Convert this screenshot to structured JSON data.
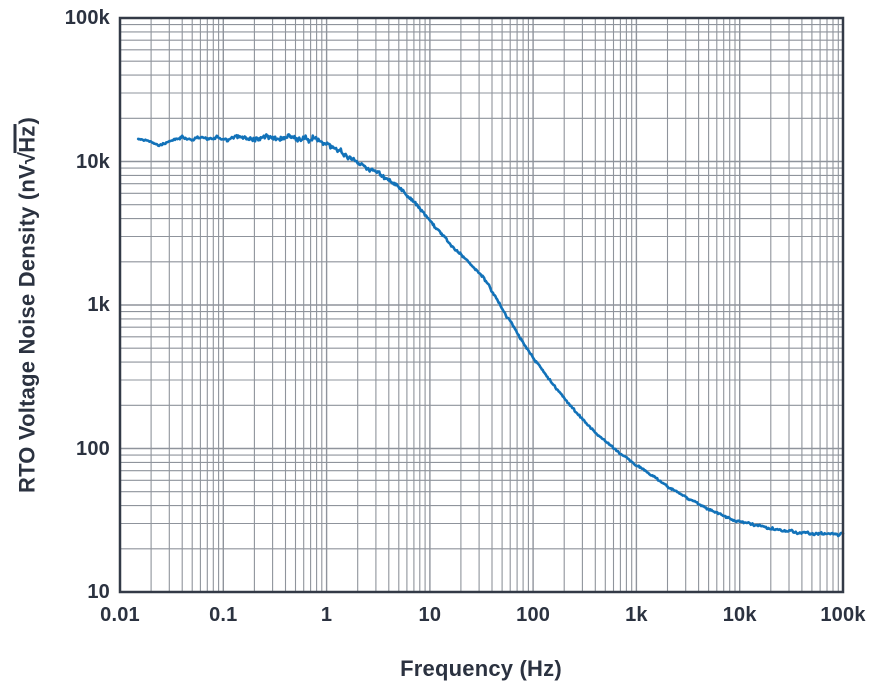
{
  "colors": {
    "curve": "#1272b9",
    "grid": "#8f949c",
    "frame": "#333a47",
    "text": "#2b3240",
    "background": "#ffffff"
  },
  "chart_data": {
    "type": "line",
    "title": "",
    "xlabel": "Frequency (Hz)",
    "ylabel": "RTO Voltage Noise Density (nV√Hz)",
    "ylabel_parts": {
      "prefix": "RTO Voltage Noise Density (nV",
      "sqrt_symbol": "√",
      "radicand": "Hz",
      "suffix": ")"
    },
    "x_scale": "log",
    "y_scale": "log",
    "xlim": [
      0.01,
      100000
    ],
    "ylim": [
      10,
      100000
    ],
    "grid": {
      "on": true,
      "minor": true
    },
    "legend": null,
    "x_ticks": [
      {
        "v": 0.01,
        "label": "0.01"
      },
      {
        "v": 0.1,
        "label": "0.1"
      },
      {
        "v": 1,
        "label": "1"
      },
      {
        "v": 10,
        "label": "10"
      },
      {
        "v": 100,
        "label": "100"
      },
      {
        "v": 1000,
        "label": "1k"
      },
      {
        "v": 10000,
        "label": "10k"
      },
      {
        "v": 100000,
        "label": "100k"
      }
    ],
    "y_ticks": [
      {
        "v": 10,
        "label": "10"
      },
      {
        "v": 100,
        "label": "100"
      },
      {
        "v": 1000,
        "label": "1k"
      },
      {
        "v": 10000,
        "label": "10k"
      },
      {
        "v": 100000,
        "label": "100k"
      }
    ],
    "series": [
      {
        "name": "RTO voltage noise density",
        "color": "#1272b9",
        "points_format": [
          "frequency_hz",
          "noise_nv_rthz",
          "jitter_log10"
        ],
        "points": [
          [
            0.015,
            14500,
            0.006
          ],
          [
            0.019,
            13900,
            0.007
          ],
          [
            0.024,
            13000,
            0.008
          ],
          [
            0.03,
            13900,
            0.009
          ],
          [
            0.04,
            14800,
            0.01
          ],
          [
            0.05,
            14200,
            0.011
          ],
          [
            0.062,
            14900,
            0.012
          ],
          [
            0.075,
            14300,
            0.013
          ],
          [
            0.09,
            14800,
            0.014
          ],
          [
            0.11,
            14400,
            0.015
          ],
          [
            0.14,
            14900,
            0.016
          ],
          [
            0.18,
            14300,
            0.017
          ],
          [
            0.24,
            14800,
            0.018
          ],
          [
            0.32,
            14400,
            0.02
          ],
          [
            0.45,
            14700,
            0.022
          ],
          [
            0.6,
            14500,
            0.024
          ],
          [
            0.75,
            14100,
            0.025
          ],
          [
            0.9,
            13900,
            0.025
          ],
          [
            1.1,
            12800,
            0.024
          ],
          [
            1.4,
            11500,
            0.022
          ],
          [
            1.8,
            10300,
            0.02
          ],
          [
            2.3,
            9200,
            0.018
          ],
          [
            3.0,
            8600,
            0.016
          ],
          [
            5.0,
            6600,
            0.015
          ],
          [
            7.0,
            5300,
            0.014
          ],
          [
            10,
            3900,
            0.012
          ],
          [
            15,
            2750,
            0.011
          ],
          [
            22,
            2100,
            0.01
          ],
          [
            33,
            1550,
            0.01
          ],
          [
            48,
            1000,
            0.009
          ],
          [
            70,
            640,
            0.009
          ],
          [
            100,
            430,
            0.008
          ],
          [
            150,
            290,
            0.008
          ],
          [
            220,
            205,
            0.008
          ],
          [
            320,
            152,
            0.008
          ],
          [
            470,
            117,
            0.008
          ],
          [
            600,
            100,
            0.008
          ],
          [
            1000,
            77,
            0.008
          ],
          [
            1500,
            63,
            0.008
          ],
          [
            2200,
            52,
            0.008
          ],
          [
            3300,
            44,
            0.008
          ],
          [
            4700,
            38.5,
            0.008
          ],
          [
            7000,
            34,
            0.009
          ],
          [
            10000,
            31,
            0.009
          ],
          [
            15000,
            29,
            0.009
          ],
          [
            22000,
            27.5,
            0.01
          ],
          [
            33000,
            26.3,
            0.01
          ],
          [
            47000,
            25.7,
            0.01
          ],
          [
            70000,
            25.3,
            0.01
          ],
          [
            100000,
            25.2,
            0.01
          ]
        ]
      }
    ],
    "plot_flat_level_nv": 14500,
    "plot_floor_level_nv": 25
  }
}
